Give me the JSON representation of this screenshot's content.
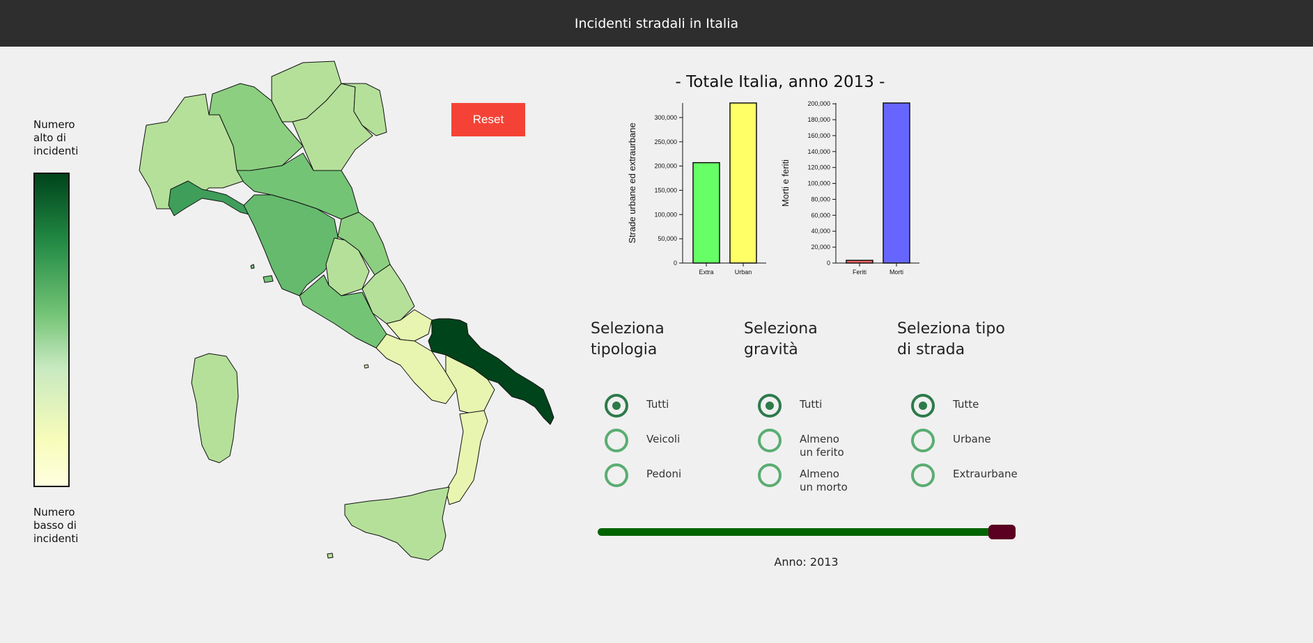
{
  "header": {
    "title": "Incidenti stradali in Italia"
  },
  "legend": {
    "top_label": "Numero alto di incidenti",
    "bottom_label": "Numero basso di incidenti"
  },
  "reset_label": "Reset",
  "map": {
    "name": "Italy regions choropleth"
  },
  "chart_title": "- Totale Italia, anno 2013 -",
  "chart_data": [
    {
      "type": "bar",
      "ylabel": "Strade urbane ed extraurbane",
      "categories": [
        "Extra",
        "Urban"
      ],
      "values": [
        207000,
        330000
      ],
      "colors": [
        "#66ff66",
        "#ffff66"
      ],
      "ylim": [
        0,
        330000
      ],
      "ticks": [
        "0",
        "50,000",
        "100,000",
        "150,000",
        "200,000",
        "250,000",
        "300,000"
      ],
      "tick_values": [
        0,
        50000,
        100000,
        150000,
        200000,
        250000,
        300000
      ]
    },
    {
      "type": "bar",
      "ylabel": "Morti e feriti",
      "categories": [
        "Feriti",
        "Morti"
      ],
      "values": [
        3400,
        201000
      ],
      "colors": [
        "#ff6666",
        "#6666ff"
      ],
      "ylim": [
        0,
        201000
      ],
      "ticks": [
        "0",
        "20,000",
        "40,000",
        "60,000",
        "80,000",
        "100,000",
        "120,000",
        "140,000",
        "160,000",
        "180,000",
        "200,000"
      ],
      "tick_values": [
        0,
        20000,
        40000,
        60000,
        80000,
        100000,
        120000,
        140000,
        160000,
        180000,
        200000
      ]
    }
  ],
  "filters": [
    {
      "title": "Seleziona tipologia",
      "options": [
        "Tutti",
        "Veicoli",
        "Pedoni"
      ],
      "selected": 0
    },
    {
      "title": "Seleziona gravità",
      "options": [
        "Tutti",
        "Almeno un ferito",
        "Almeno un morto"
      ],
      "selected": 0
    },
    {
      "title": "Seleziona tipo di strada",
      "options": [
        "Tutte",
        "Urbane",
        "Extraurbane"
      ],
      "selected": 0
    }
  ],
  "year_label": "Anno: 2013",
  "year_progress": 1.0,
  "colors": {
    "header": "#2e2e2e",
    "reset": "#f44336",
    "slider_track": "#006400",
    "slider_thumb": "#5b0020",
    "radio_on": "#2d7a4a",
    "radio_off": "#5aad72"
  }
}
